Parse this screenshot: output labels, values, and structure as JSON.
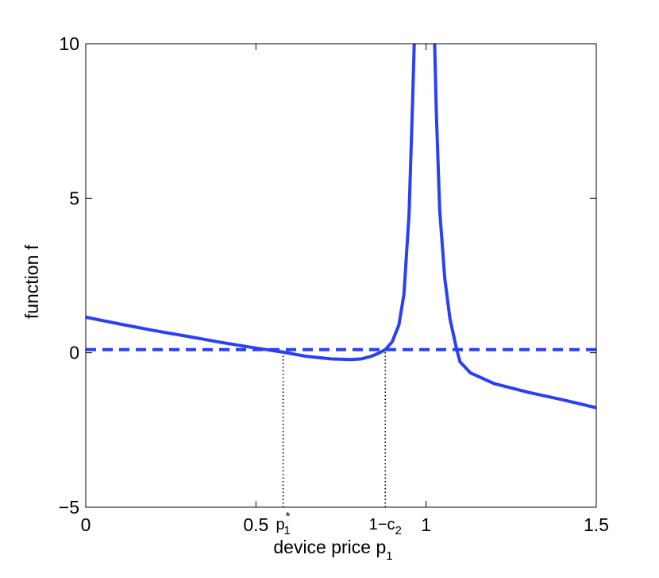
{
  "chart_data": {
    "type": "line",
    "xlabel": "device price p",
    "xlabel_subscript": "1",
    "ylabel": "function f",
    "xlim": [
      0,
      1.5
    ],
    "ylim": [
      -5,
      10
    ],
    "xticks": [
      {
        "value": 0,
        "label": "0"
      },
      {
        "value": 0.5,
        "label": "0.5"
      },
      {
        "value": 1,
        "label": "1"
      },
      {
        "value": 1.5,
        "label": "1.5"
      }
    ],
    "yticks": [
      {
        "value": -5,
        "label": "−5"
      },
      {
        "value": 0,
        "label": "0"
      },
      {
        "value": 5,
        "label": "5"
      },
      {
        "value": 10,
        "label": "10"
      }
    ],
    "annotations": [
      {
        "id": "p1star",
        "x": 0.58,
        "base": "p",
        "subscript": "1",
        "superscript": "*"
      },
      {
        "id": "one-minus-c2",
        "x": 0.88,
        "base": "1−c",
        "subscript": "2",
        "superscript": ""
      }
    ],
    "grid": false,
    "legend": "none",
    "series": [
      {
        "style": "solid",
        "color": "#2b3ff5",
        "points": [
          [
            0.0,
            1.15
          ],
          [
            0.1,
            0.93
          ],
          [
            0.2,
            0.72
          ],
          [
            0.3,
            0.53
          ],
          [
            0.4,
            0.33
          ],
          [
            0.5,
            0.15
          ],
          [
            0.58,
            0.02
          ],
          [
            0.65,
            -0.12
          ],
          [
            0.72,
            -0.2
          ],
          [
            0.78,
            -0.22
          ],
          [
            0.81,
            -0.2
          ],
          [
            0.84,
            -0.11
          ],
          [
            0.86,
            -0.02
          ],
          [
            0.88,
            0.1
          ],
          [
            0.9,
            0.35
          ],
          [
            0.92,
            0.9
          ],
          [
            0.935,
            1.9
          ],
          [
            0.95,
            4.5
          ],
          [
            0.96,
            8.0
          ],
          [
            0.965,
            10.0
          ]
        ]
      },
      {
        "style": "solid",
        "color": "#2b3ff5",
        "points": [
          [
            1.025,
            10.0
          ],
          [
            1.03,
            7.8
          ],
          [
            1.04,
            4.6
          ],
          [
            1.055,
            2.4
          ],
          [
            1.07,
            1.1
          ],
          [
            1.09,
            0.1
          ],
          [
            1.1,
            -0.3
          ],
          [
            1.13,
            -0.65
          ],
          [
            1.2,
            -1.0
          ],
          [
            1.3,
            -1.28
          ],
          [
            1.4,
            -1.52
          ],
          [
            1.5,
            -1.78
          ]
        ]
      },
      {
        "style": "dashed",
        "color": "#2b3ff5",
        "points": [
          [
            0.0,
            0.1
          ],
          [
            1.5,
            0.1
          ]
        ]
      }
    ],
    "reference_lines": [
      {
        "style": "dotted",
        "color": "#000000",
        "x": 0.58,
        "y_from": -5,
        "y_to": 0.02
      },
      {
        "style": "dotted",
        "color": "#000000",
        "x": 0.88,
        "y_from": -5,
        "y_to": 0.1
      }
    ]
  }
}
